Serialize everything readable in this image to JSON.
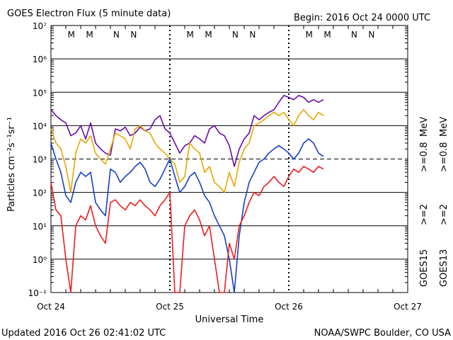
{
  "header": {
    "title": "GOES Electron Flux (5 minute data)",
    "begin": "Begin: 2016 Oct 24 0000 UTC"
  },
  "footer": {
    "updated": "Updated 2016 Oct 26 02:41:02 UTC",
    "credit": "NOAA/SWPC Boulder, CO USA"
  },
  "right_labels": {
    "goes15": "GOES15",
    "goes13": "GOES13",
    "ge2_blue": ">=2",
    "ge08_purple": ">=0.8",
    "ge2_red": ">=2",
    "ge08_orange": ">=0.8",
    "mev1": "MeV",
    "mev2": "MeV"
  },
  "markers": {
    "M": "M",
    "N": "N",
    "colors": {
      "goes13": "#ff0000",
      "goes15": "#2244cc"
    }
  },
  "chart_data": {
    "type": "line",
    "title": "GOES Electron Flux (5 minute data)",
    "xlabel": "Universal Time",
    "ylabel": "Particles cm⁻²s⁻¹sr⁻¹",
    "x_ticks": [
      "Oct 24",
      "Oct 25",
      "Oct 26",
      "Oct 27"
    ],
    "x_unit": "hours since 2016 Oct 24 0000 UTC",
    "xlim": [
      0,
      72
    ],
    "y_scale": "log",
    "ylim": [
      0.1,
      10000000
    ],
    "y_ticks": [
      "10⁻¹",
      "10⁰",
      "10¹",
      "10²",
      "10³",
      "10⁴",
      "10⁵",
      "10⁶",
      "10⁷"
    ],
    "reference_lines": [
      {
        "y": 1000,
        "style": "dashed"
      }
    ],
    "grid": true,
    "series": [
      {
        "name": "GOES15 >=0.8 MeV",
        "color": "#6a0aa8",
        "x": [
          0,
          1,
          2,
          3,
          4,
          5,
          6,
          7,
          8,
          9,
          10,
          11,
          12,
          13,
          14,
          15,
          16,
          17,
          18,
          19,
          20,
          21,
          22,
          23,
          24,
          25,
          26,
          27,
          28,
          29,
          30,
          31,
          32,
          33,
          34,
          35,
          36,
          37,
          38,
          39,
          40,
          41,
          42,
          43,
          44,
          45,
          46,
          47,
          48,
          49,
          50,
          51,
          52,
          53,
          54,
          55
        ],
        "y": [
          30000,
          20000,
          15000,
          12000,
          5000,
          6000,
          10000,
          4000,
          12000,
          3000,
          2000,
          1500,
          1300,
          8000,
          7000,
          9000,
          5000,
          6000,
          9000,
          7000,
          8000,
          15000,
          20000,
          8000,
          6000,
          3000,
          1500,
          2500,
          3000,
          5000,
          4000,
          3000,
          8000,
          10000,
          6000,
          5000,
          2500,
          600,
          2000,
          4000,
          6000,
          20000,
          15000,
          20000,
          25000,
          30000,
          50000,
          80000,
          70000,
          60000,
          80000,
          70000,
          50000,
          60000,
          50000,
          60000
        ]
      },
      {
        "name": "GOES13 >=0.8 MeV",
        "color": "#e8a600",
        "x": [
          0,
          1,
          2,
          3,
          4,
          5,
          6,
          7,
          8,
          9,
          10,
          11,
          12,
          13,
          14,
          15,
          16,
          17,
          18,
          19,
          20,
          21,
          22,
          23,
          24,
          25,
          26,
          27,
          28,
          29,
          30,
          31,
          32,
          33,
          34,
          35,
          36,
          37,
          38,
          39,
          40,
          41,
          42,
          43,
          44,
          45,
          46,
          47,
          48,
          49,
          50,
          51,
          52,
          53,
          54,
          55
        ],
        "y": [
          8000,
          3000,
          2000,
          600,
          100,
          1500,
          4000,
          3000,
          5000,
          1500,
          1000,
          700,
          2000,
          6000,
          5000,
          4000,
          2000,
          8000,
          10000,
          7000,
          6000,
          3000,
          2000,
          1500,
          1000,
          700,
          200,
          300,
          3000,
          2000,
          1500,
          400,
          600,
          200,
          150,
          100,
          400,
          150,
          800,
          2000,
          3000,
          10000,
          12000,
          15000,
          20000,
          25000,
          20000,
          25000,
          15000,
          10000,
          20000,
          30000,
          20000,
          15000,
          25000,
          20000
        ]
      },
      {
        "name": "GOES15 >=2 MeV",
        "color": "#1540c8",
        "x": [
          0,
          1,
          2,
          3,
          4,
          5,
          6,
          7,
          8,
          9,
          10,
          11,
          12,
          13,
          14,
          15,
          16,
          17,
          18,
          19,
          20,
          21,
          22,
          23,
          24,
          25,
          26,
          27,
          28,
          29,
          30,
          31,
          32,
          33,
          34,
          35,
          36,
          37,
          38,
          39,
          40,
          41,
          42,
          43,
          44,
          45,
          46,
          47,
          48,
          49,
          50,
          51,
          52,
          53,
          54,
          55
        ],
        "y": [
          3000,
          1000,
          400,
          80,
          50,
          200,
          400,
          300,
          400,
          50,
          30,
          20,
          500,
          400,
          200,
          300,
          400,
          600,
          800,
          500,
          200,
          150,
          250,
          500,
          1000,
          300,
          100,
          150,
          300,
          400,
          200,
          80,
          50,
          20,
          10,
          5,
          1,
          0.1,
          5,
          50,
          200,
          400,
          800,
          1000,
          1500,
          2000,
          2500,
          2000,
          1500,
          1000,
          1500,
          3000,
          4000,
          3000,
          1500,
          1200
        ]
      },
      {
        "name": "GOES13 >=2 MeV",
        "color": "#ee1c1c",
        "x": [
          0,
          1,
          2,
          3,
          4,
          5,
          6,
          7,
          8,
          9,
          10,
          11,
          12,
          13,
          14,
          15,
          16,
          17,
          18,
          19,
          20,
          21,
          22,
          23,
          24,
          25,
          26,
          27,
          28,
          29,
          30,
          31,
          32,
          33,
          34,
          35,
          36,
          37,
          38,
          39,
          40,
          41,
          42,
          43,
          44,
          45,
          46,
          47,
          48,
          49,
          50,
          51,
          52,
          53,
          54,
          55
        ],
        "y": [
          200,
          30,
          20,
          1,
          0.1,
          10,
          20,
          15,
          40,
          10,
          5,
          3,
          50,
          60,
          40,
          30,
          50,
          40,
          60,
          40,
          30,
          20,
          40,
          60,
          100,
          0.1,
          0.1,
          10,
          20,
          30,
          15,
          5,
          10,
          1,
          0.1,
          0.1,
          3,
          1,
          10,
          20,
          50,
          100,
          80,
          150,
          200,
          300,
          200,
          150,
          300,
          500,
          400,
          600,
          500,
          400,
          600,
          500
        ]
      }
    ]
  }
}
